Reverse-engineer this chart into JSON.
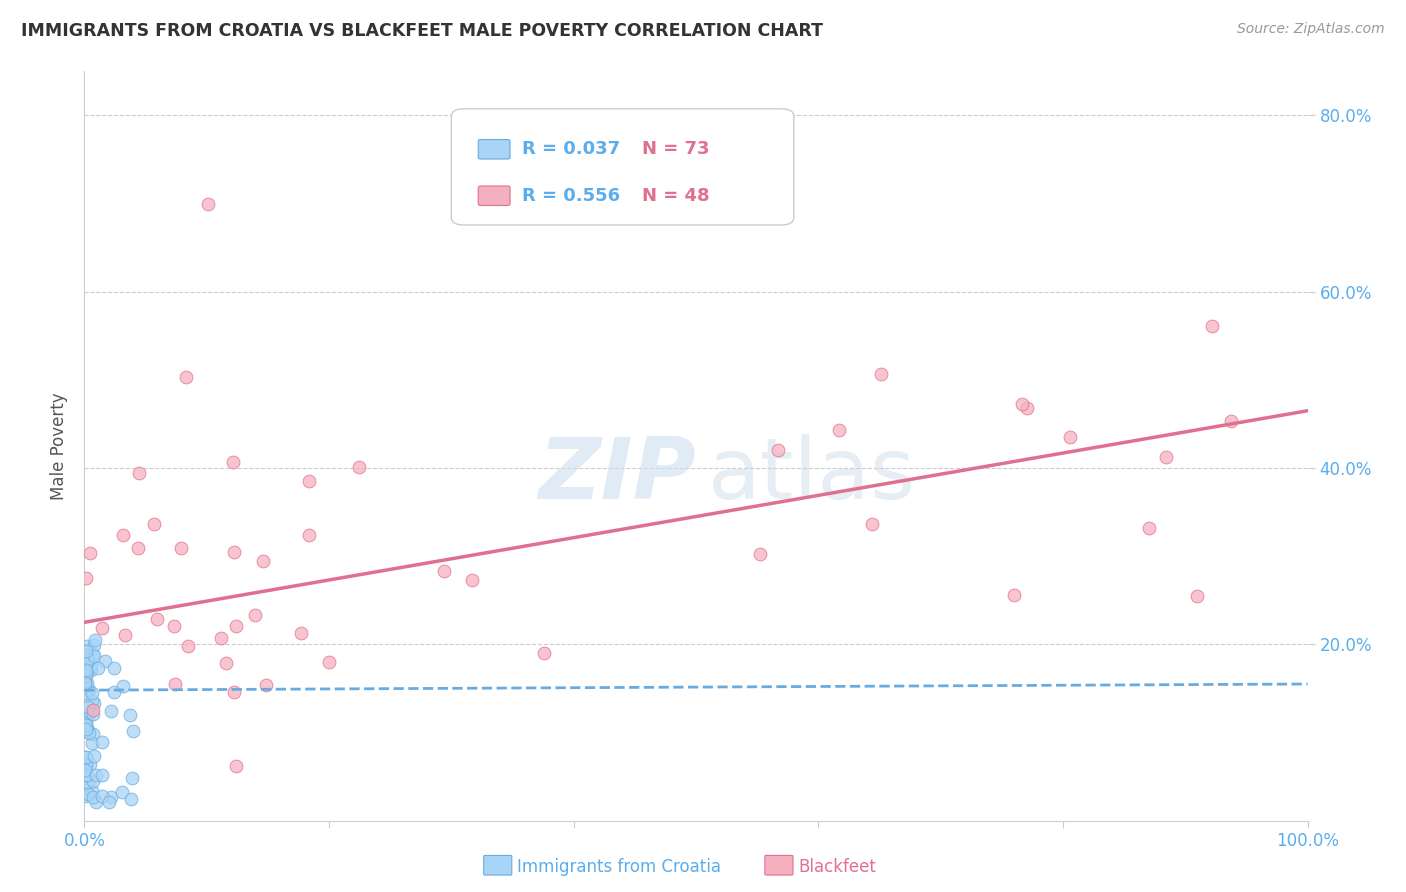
{
  "title": "IMMIGRANTS FROM CROATIA VS BLACKFEET MALE POVERTY CORRELATION CHART",
  "source": "Source: ZipAtlas.com",
  "ylabel": "Male Poverty",
  "xlim": [
    0.0,
    1.0
  ],
  "ylim": [
    0.0,
    0.85
  ],
  "background_color": "#ffffff",
  "grid_color": "#cccccc",
  "tick_label_color": "#5badec",
  "title_color": "#333333",
  "source_color": "#999999",
  "croatia_fill": "#a8d4f5",
  "croatia_edge": "#6aabdf",
  "blackfeet_fill": "#f5b0c0",
  "blackfeet_edge": "#e07090",
  "croatia_line": "#6aabdf",
  "blackfeet_line": "#e07090",
  "legend_r_color": "#5badec",
  "legend_n_color": "#e07090",
  "legend_r_croatia": "R = 0.037",
  "legend_n_croatia": "N = 73",
  "legend_r_blackfeet": "R = 0.556",
  "legend_n_blackfeet": "N = 48",
  "croatia_trend_y0": 0.148,
  "croatia_trend_y1": 0.155,
  "blackfeet_trend_y0": 0.225,
  "blackfeet_trend_y1": 0.465,
  "ylabel_color": "#555555",
  "watermark_zip": "ZIP",
  "watermark_atlas": "atlas"
}
